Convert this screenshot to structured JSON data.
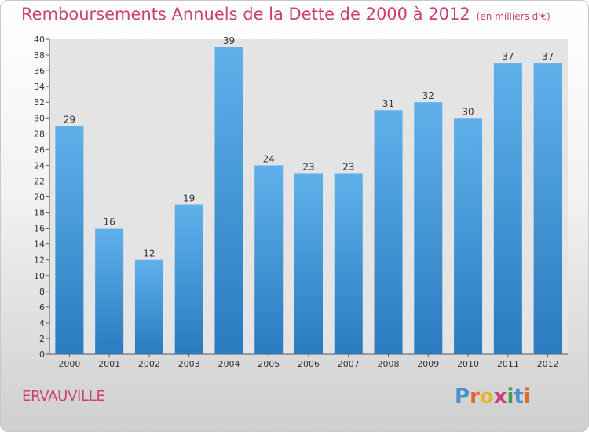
{
  "title": "Remboursements Annuels de la Dette de 2000 à 2012",
  "subtitle": "(en milliers d'€)",
  "commune": "ERVAUVILLE",
  "logo": {
    "letters": [
      "P",
      "r",
      "o",
      "x",
      "i",
      "t",
      "i"
    ],
    "colors": [
      "#4a8fd0",
      "#e4682b",
      "#e7b52a",
      "#cc3f74",
      "#3aa04a",
      "#4a8fd0",
      "#e4682b"
    ]
  },
  "colors": {
    "bar_light": "#5fb0ea",
    "bar_dark": "#2a7bbf",
    "label": "#333333",
    "title": "#cc3f74"
  },
  "chart_data": {
    "type": "bar",
    "categories": [
      "2000",
      "2001",
      "2002",
      "2003",
      "2004",
      "2005",
      "2006",
      "2007",
      "2008",
      "2009",
      "2010",
      "2011",
      "2012"
    ],
    "values": [
      29,
      16,
      12,
      19,
      39,
      24,
      23,
      23,
      31,
      32,
      30,
      37,
      37
    ],
    "title": "Remboursements Annuels de la Dette de 2000 à 2012",
    "ylim": [
      0,
      40
    ],
    "yticks": [
      "0",
      "2",
      "4",
      "6",
      "8",
      "10",
      "12",
      "14",
      "16",
      "18",
      "20",
      "22",
      "24",
      "26",
      "28",
      "30",
      "32",
      "34",
      "36",
      "38",
      "40"
    ],
    "grid": false,
    "data_labels": true
  }
}
